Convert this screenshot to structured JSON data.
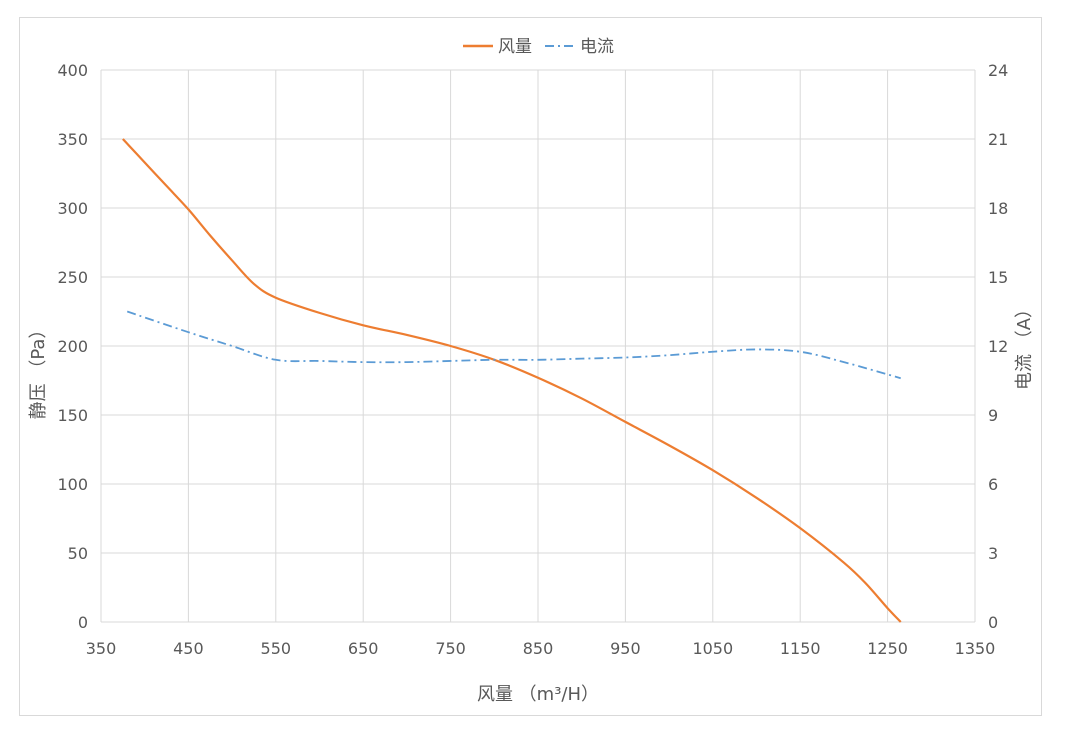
{
  "chart_data": {
    "type": "line",
    "title": "",
    "xlabel": "风量 （m³/H）",
    "ylabel": "静压 （Pa）",
    "y2label": "电流 （A）",
    "xlim": [
      350,
      1350
    ],
    "ylim": [
      0,
      400
    ],
    "y2lim": [
      0,
      24
    ],
    "xticks": [
      350,
      450,
      550,
      650,
      750,
      850,
      950,
      1050,
      1150,
      1250,
      1350
    ],
    "yticks": [
      0,
      50,
      100,
      150,
      200,
      250,
      300,
      350,
      400
    ],
    "y2ticks": [
      0,
      3,
      6,
      9,
      12,
      15,
      18,
      21,
      24
    ],
    "grid": true,
    "legend_position": "top-center",
    "series": [
      {
        "name": "风量",
        "axis": "left",
        "color": "#ED7D31",
        "style": "solid",
        "x": [
          375,
          400,
          425,
          450,
          475,
          500,
          525,
          550,
          600,
          650,
          700,
          750,
          800,
          850,
          900,
          950,
          1000,
          1050,
          1100,
          1150,
          1200,
          1225,
          1250,
          1265
        ],
        "y": [
          350,
          333,
          316,
          299,
          280,
          262,
          245,
          235,
          224,
          215,
          208,
          200,
          190,
          177,
          162,
          145,
          128,
          110,
          90,
          68,
          43,
          28,
          10,
          0
        ]
      },
      {
        "name": "电流",
        "axis": "right",
        "color": "#5B9BD5",
        "style": "dash-dot",
        "x": [
          380,
          450,
          500,
          550,
          600,
          650,
          700,
          750,
          800,
          850,
          900,
          950,
          1000,
          1050,
          1100,
          1150,
          1200,
          1265
        ],
        "y": [
          13.5,
          12.6,
          12.0,
          11.4,
          11.35,
          11.3,
          11.3,
          11.35,
          11.4,
          11.4,
          11.45,
          11.5,
          11.6,
          11.75,
          11.85,
          11.75,
          11.3,
          10.6
        ]
      }
    ]
  }
}
